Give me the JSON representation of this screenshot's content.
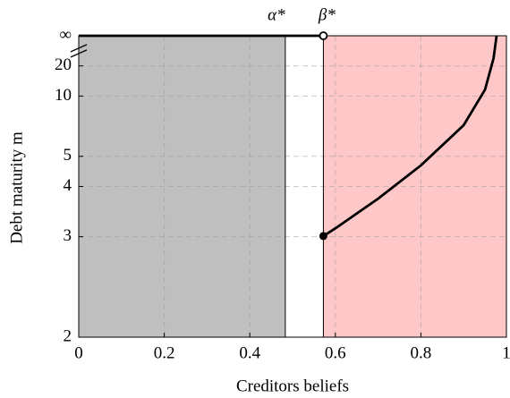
{
  "chart_data": {
    "type": "line",
    "x_label": "Creditors beliefs",
    "y_label": "Debt maturity m",
    "yscale": "reciprocal",
    "xlim": [
      0,
      1
    ],
    "xticks": [
      0,
      0.2,
      0.4,
      0.6,
      0.8,
      1
    ],
    "ylim": [
      2,
      "Infinity"
    ],
    "yticks": [
      2,
      3,
      4,
      5,
      10,
      20,
      {
        "value": "Infinity",
        "label": "∞"
      }
    ],
    "grid": true,
    "shading": [
      {
        "from": 0,
        "to": 0.483,
        "color": "#bfbfbf"
      },
      {
        "from": 0.572,
        "to": 1,
        "color": "#ffc8c8"
      }
    ],
    "thresholds": [
      {
        "label": "α*",
        "value": 0.483
      },
      {
        "label": "β*",
        "value": 0.572
      }
    ],
    "series": [
      {
        "color": "#000000",
        "marker": "open-end",
        "x": [
          0,
          0.572
        ],
        "values": [
          "Infinity",
          "Infinity"
        ]
      },
      {
        "color": "#000000",
        "marker": "filled-start",
        "x": [
          0.572,
          0.6,
          0.7,
          0.8,
          0.9,
          0.95,
          0.97,
          0.977
        ],
        "values": [
          3.01,
          3.13,
          3.7,
          4.65,
          6.74,
          11.2,
          27,
          "Infinity"
        ]
      }
    ]
  }
}
